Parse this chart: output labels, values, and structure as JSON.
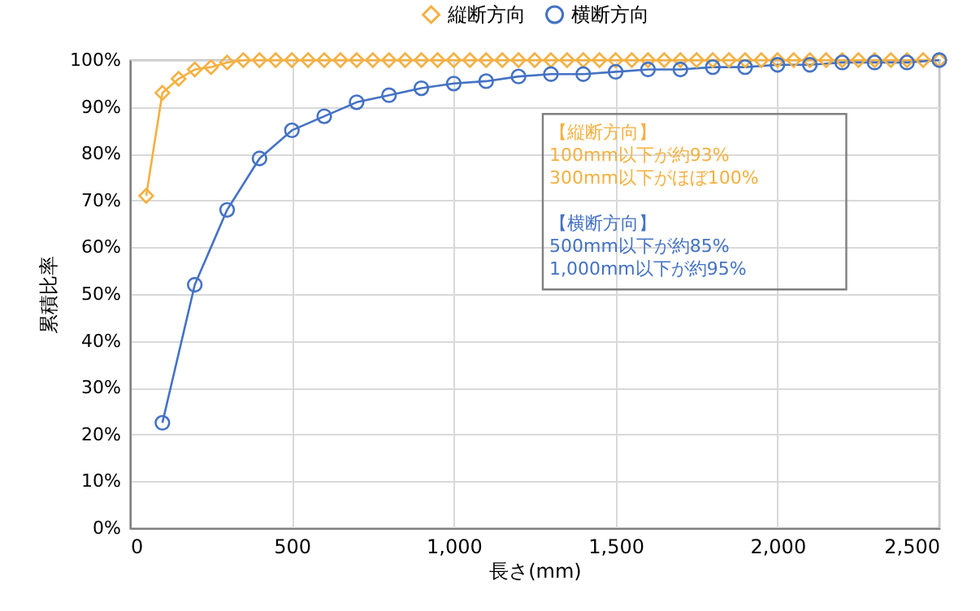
{
  "chart_data": {
    "type": "line",
    "xlabel": "長さ(mm)",
    "ylabel": "累積比率",
    "grid": true,
    "legend": "top",
    "line_style": "solid",
    "xlim": [
      0,
      2500
    ],
    "xticks": [
      0,
      {
        "value": 500,
        "label": "500"
      },
      {
        "value": 1000,
        "label": "1,000"
      },
      {
        "value": 1500,
        "label": "1,500"
      },
      {
        "value": 2000,
        "label": "2,000"
      },
      {
        "value": 2500,
        "label": "2,500"
      }
    ],
    "ylim": [
      0,
      100
    ],
    "yticks": [
      {
        "value": 0,
        "label": "0%"
      },
      {
        "value": 10,
        "label": "10%"
      },
      {
        "value": 20,
        "label": "20%"
      },
      {
        "value": 30,
        "label": "30%"
      },
      {
        "value": 40,
        "label": "40%"
      },
      {
        "value": 50,
        "label": "50%"
      },
      {
        "value": 60,
        "label": "60%"
      },
      {
        "value": 70,
        "label": "70%"
      },
      {
        "value": 80,
        "label": "80%"
      },
      {
        "value": 90,
        "label": "90%"
      },
      {
        "value": 100,
        "label": "100%"
      }
    ],
    "series": [
      {
        "name": "縦断方向",
        "color": "#f5b040",
        "marker": "diamond",
        "x": [
          50,
          100,
          150,
          200,
          250,
          300,
          350,
          400,
          450,
          500,
          550,
          600,
          650,
          700,
          750,
          800,
          850,
          900,
          950,
          1000,
          1050,
          1100,
          1150,
          1200,
          1250,
          1300,
          1350,
          1400,
          1450,
          1500,
          1550,
          1600,
          1650,
          1700,
          1750,
          1800,
          1850,
          1900,
          1950,
          2000,
          2050,
          2100,
          2150,
          2200,
          2250,
          2300,
          2350,
          2400,
          2450,
          2500
        ],
        "values": [
          71,
          93,
          96,
          98,
          98.5,
          99.5,
          100,
          100,
          100,
          100,
          100,
          100,
          100,
          100,
          100,
          100,
          100,
          100,
          100,
          100,
          100,
          100,
          100,
          100,
          100,
          100,
          100,
          100,
          100,
          100,
          100,
          100,
          100,
          100,
          100,
          100,
          100,
          100,
          100,
          100,
          100,
          100,
          100,
          100,
          100,
          100,
          100,
          100,
          100,
          100
        ]
      },
      {
        "name": "横断方向",
        "color": "#4472c4",
        "marker": "circle",
        "x": [
          100,
          200,
          300,
          400,
          500,
          600,
          700,
          800,
          900,
          1000,
          1100,
          1200,
          1300,
          1400,
          1500,
          1600,
          1700,
          1800,
          1900,
          2000,
          2100,
          2200,
          2300,
          2400,
          2500
        ],
        "values": [
          22.5,
          52,
          68,
          79,
          85,
          88,
          91,
          92.5,
          94,
          95,
          95.5,
          96.5,
          97,
          97,
          97.5,
          98,
          98,
          98.5,
          98.5,
          99,
          99,
          99.5,
          99.5,
          99.5,
          100
        ]
      }
    ],
    "annotations": [
      "【縦断方向】\n　　100mm以下が約93%\n　　300mm以下がほぼ100%",
      "【横断方向】\n　　500mm以下が約85%\n　1,000mm以下が約95%"
    ]
  }
}
